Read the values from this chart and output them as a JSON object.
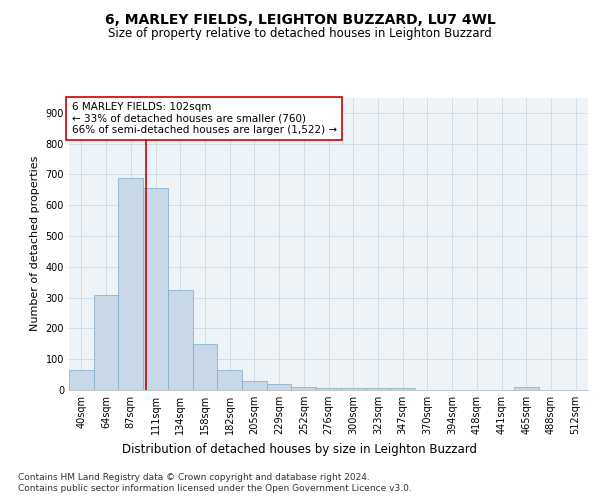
{
  "title": "6, MARLEY FIELDS, LEIGHTON BUZZARD, LU7 4WL",
  "subtitle": "Size of property relative to detached houses in Leighton Buzzard",
  "xlabel": "Distribution of detached houses by size in Leighton Buzzard",
  "ylabel": "Number of detached properties",
  "footer_line1": "Contains HM Land Registry data © Crown copyright and database right 2024.",
  "footer_line2": "Contains public sector information licensed under the Open Government Licence v3.0.",
  "annotation_line1": "6 MARLEY FIELDS: 102sqm",
  "annotation_line2": "← 33% of detached houses are smaller (760)",
  "annotation_line3": "66% of semi-detached houses are larger (1,522) →",
  "bin_labels": [
    "40sqm",
    "64sqm",
    "87sqm",
    "111sqm",
    "134sqm",
    "158sqm",
    "182sqm",
    "205sqm",
    "229sqm",
    "252sqm",
    "276sqm",
    "300sqm",
    "323sqm",
    "347sqm",
    "370sqm",
    "394sqm",
    "418sqm",
    "441sqm",
    "465sqm",
    "488sqm",
    "512sqm"
  ],
  "bar_heights": [
    65,
    310,
    690,
    655,
    325,
    150,
    65,
    30,
    18,
    10,
    5,
    5,
    5,
    5,
    0,
    0,
    0,
    0,
    10,
    0,
    0
  ],
  "bar_color": "#c8d8e8",
  "bar_edge_color": "#7aaac8",
  "grid_color": "#d0dce8",
  "background_color": "#eef3f8",
  "ylim": [
    0,
    950
  ],
  "yticks": [
    0,
    100,
    200,
    300,
    400,
    500,
    600,
    700,
    800,
    900
  ],
  "vline_color": "#cc0000",
  "title_fontsize": 10,
  "subtitle_fontsize": 8.5,
  "ylabel_fontsize": 8,
  "xlabel_fontsize": 8.5,
  "tick_fontsize": 7,
  "annotation_fontsize": 7.5,
  "footer_fontsize": 6.5
}
